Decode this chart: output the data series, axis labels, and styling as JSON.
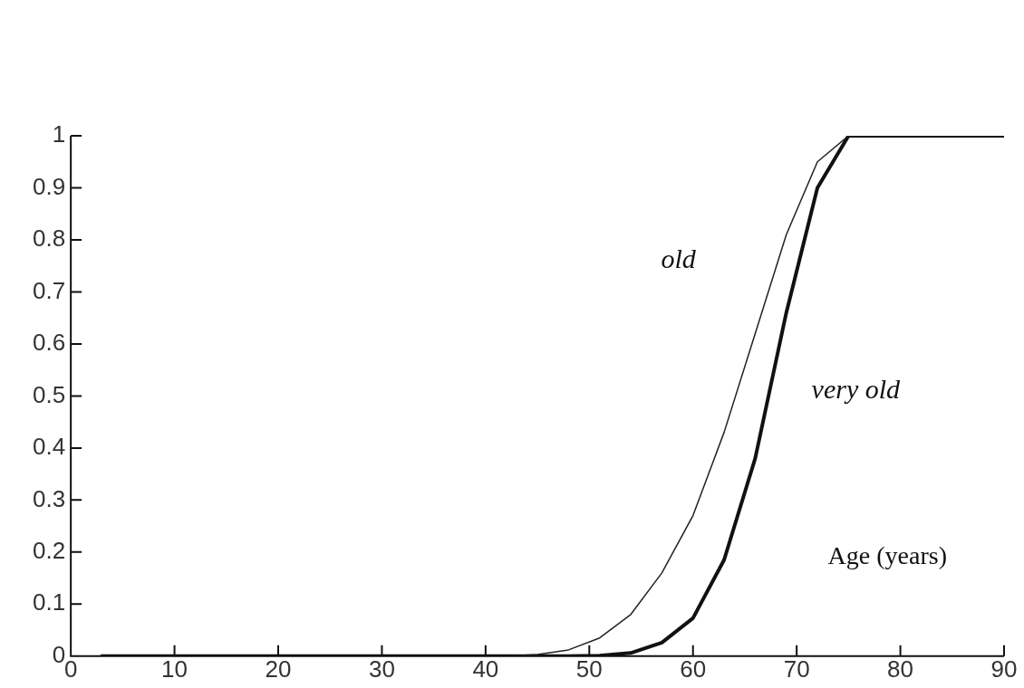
{
  "chart_data": {
    "type": "line",
    "xlabel": "Age (years)",
    "xlim": [
      0,
      90
    ],
    "xticks": [
      0,
      10,
      20,
      30,
      40,
      50,
      60,
      70,
      80,
      90
    ],
    "ylim": [
      0,
      1
    ],
    "yticks": [
      0,
      0.1,
      0.2,
      0.3,
      0.4,
      0.5,
      0.6,
      0.7,
      0.8,
      0.9,
      1
    ],
    "grid": false,
    "legend": false,
    "marker": "none",
    "line_style": "solid",
    "series": [
      {
        "name": "old",
        "color": "#222222",
        "x": [
          3,
          42,
          45,
          48,
          51,
          54,
          57,
          60,
          63,
          66,
          69,
          72,
          75,
          90
        ],
        "values": [
          0,
          0,
          0.003,
          0.012,
          0.035,
          0.08,
          0.16,
          0.27,
          0.43,
          0.62,
          0.81,
          0.95,
          1,
          1
        ]
      },
      {
        "name": "very old",
        "color": "#111111",
        "x": [
          3,
          48,
          51,
          54,
          57,
          60,
          63,
          66,
          69,
          72,
          75,
          90
        ],
        "values": [
          0,
          0,
          0.001,
          0.006,
          0.026,
          0.073,
          0.185,
          0.38,
          0.66,
          0.9,
          1,
          1
        ]
      }
    ]
  }
}
